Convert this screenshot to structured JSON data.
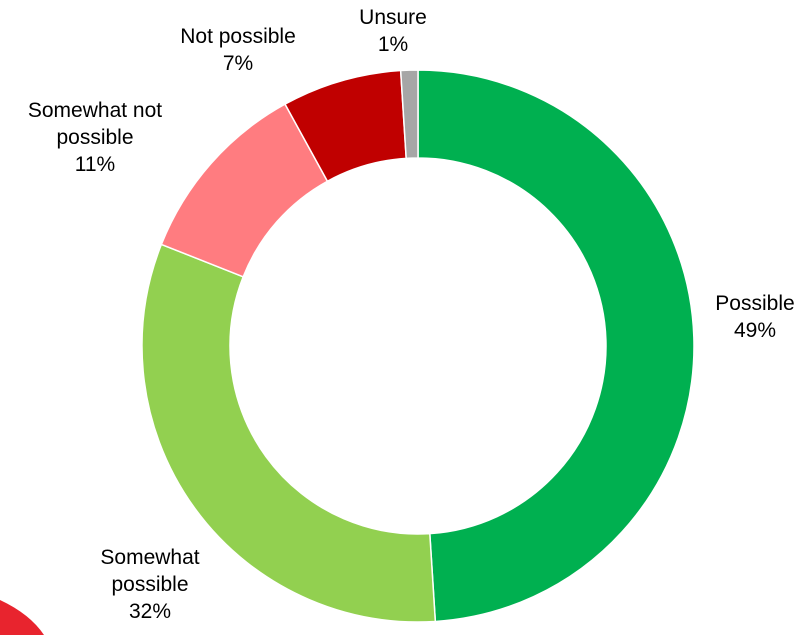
{
  "chart_data": {
    "type": "pie",
    "variant": "donut",
    "title": "",
    "slices": [
      {
        "label_lines": [
          "Possible"
        ],
        "value": 49,
        "value_label": "49%",
        "color": "#00b050"
      },
      {
        "label_lines": [
          "Somewhat",
          "possible"
        ],
        "value": 32,
        "value_label": "32%",
        "color": "#92d050"
      },
      {
        "label_lines": [
          "Somewhat not",
          "possible"
        ],
        "value": 11,
        "value_label": "11%",
        "color": "#ff7c80"
      },
      {
        "label_lines": [
          "Not possible"
        ],
        "value": 7,
        "value_label": "7%",
        "color": "#c00000"
      },
      {
        "label_lines": [
          "Unsure"
        ],
        "value": 1,
        "value_label": "1%",
        "color": "#a6a6a6"
      }
    ],
    "start_angle": "12 o'clock",
    "direction": "clockwise",
    "legend": "none",
    "labels": "outside slices, category name and percentage"
  },
  "decoration": {
    "corner_shape_color": "#e8242e"
  }
}
